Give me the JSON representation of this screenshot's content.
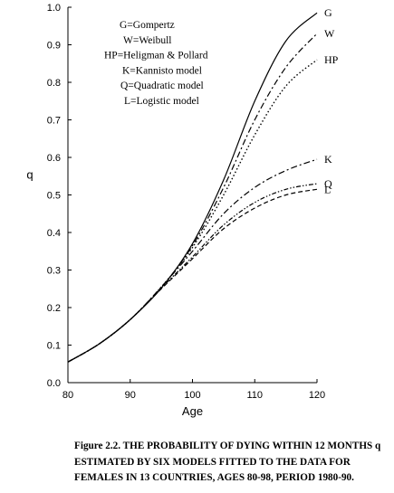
{
  "chart_data": {
    "type": "line",
    "xlabel": "Age",
    "ylabel": "q",
    "xlim": [
      80,
      120
    ],
    "ylim": [
      0.0,
      1.0
    ],
    "x_ticks": [
      "80",
      "90",
      "100",
      "110",
      "120"
    ],
    "y_ticks": [
      "0.0",
      "0.1",
      "0.2",
      "0.3",
      "0.4",
      "0.5",
      "0.6",
      "0.7",
      "0.8",
      "0.9",
      "1.0"
    ],
    "grid": false,
    "legend": [
      "G=Gompertz",
      "W=Weibull",
      "HP=Heligman & Pollard",
      "K=Kannisto model",
      "Q=Quadratic model",
      "L=Logistic model"
    ],
    "x": [
      80,
      85,
      90,
      95,
      100,
      105,
      110,
      115,
      120
    ],
    "series": [
      {
        "name": "G",
        "dash": "solid",
        "values": [
          0.055,
          0.103,
          0.168,
          0.252,
          0.37,
          0.54,
          0.75,
          0.91,
          0.985
        ]
      },
      {
        "name": "W",
        "dash": "dashdot",
        "values": [
          0.055,
          0.103,
          0.168,
          0.254,
          0.365,
          0.52,
          0.7,
          0.84,
          0.93
        ]
      },
      {
        "name": "HP",
        "dash": "dot",
        "values": [
          0.055,
          0.103,
          0.168,
          0.255,
          0.36,
          0.5,
          0.66,
          0.79,
          0.86
        ]
      },
      {
        "name": "K",
        "dash": "dashdot",
        "values": [
          0.055,
          0.103,
          0.168,
          0.255,
          0.35,
          0.45,
          0.52,
          0.565,
          0.595
        ]
      },
      {
        "name": "Q",
        "dash": "dashdot2",
        "values": [
          0.055,
          0.103,
          0.168,
          0.252,
          0.335,
          0.42,
          0.48,
          0.515,
          0.53
        ]
      },
      {
        "name": "L",
        "dash": "dash",
        "values": [
          0.055,
          0.103,
          0.168,
          0.25,
          0.33,
          0.41,
          0.465,
          0.5,
          0.515
        ]
      }
    ]
  },
  "caption": {
    "line1": "Figure 2.2. THE PROBABILITY OF DYING WITHIN 12 MONTHS q",
    "line2": "ESTIMATED BY SIX MODELS FITTED TO THE DATA FOR",
    "line3": "FEMALES IN 13 COUNTRIES, AGES 80-98, PERIOD 1980-90."
  }
}
